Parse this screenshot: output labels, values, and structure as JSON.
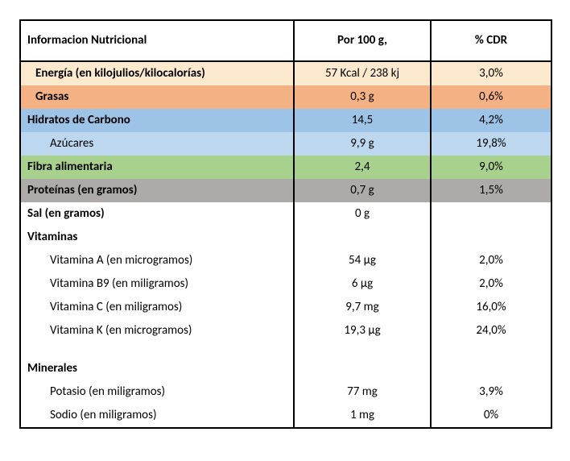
{
  "header": {
    "title": "Informacion Nutricional",
    "col2": "Por 100 g,",
    "col3": "%  CDR"
  },
  "rows": [
    {
      "label": "Energía (en kilojulios/kilocalorías)",
      "val": "57 Kcal / 238 kj",
      "cdr": "3,0%",
      "bg": "#fde9ce",
      "bold": true,
      "indent": 1
    },
    {
      "label": "Grasas",
      "val": "0,3 g",
      "cdr": "0,6%",
      "bg": "#f4b183",
      "bold": true,
      "indent": 1
    },
    {
      "label": "Hidratos de Carbono",
      "val": "14,5",
      "cdr": "4,2%",
      "bg": "#9dc3e6",
      "bold": true,
      "indent": 0
    },
    {
      "label": "Azúcares",
      "val": "9,9 g",
      "cdr": "19,8%",
      "bg": "#bdd7ee",
      "bold": false,
      "indent": 2
    },
    {
      "label": "Fibra alimentaria",
      "val": "2,4",
      "cdr": "9,0%",
      "bg": "#a9d18e",
      "bold": true,
      "indent": 0
    },
    {
      "label": "Proteínas (en gramos)",
      "val": "0,7 g",
      "cdr": "1,5%",
      "bg": "#aeaaaa",
      "bold": true,
      "indent": 0
    },
    {
      "label": "Sal (en gramos)",
      "val": "0 g",
      "cdr": "",
      "bg": "#ffffff",
      "bold": true,
      "indent": 0
    },
    {
      "label": "Vitaminas",
      "val": "",
      "cdr": "",
      "bg": "#ffffff",
      "bold": true,
      "indent": 0
    },
    {
      "label": "Vitamina A  (en microgramos)",
      "val": "54 µg",
      "cdr": "2,0%",
      "bg": "#ffffff",
      "bold": false,
      "indent": 2
    },
    {
      "label": "Vitamina B9 (en miligramos)",
      "val": "6 µg",
      "cdr": "2,0%",
      "bg": "#ffffff",
      "bold": false,
      "indent": 2
    },
    {
      "label": "Vitamina C  (en miligramos)",
      "val": "9,7 mg",
      "cdr": "16,0%",
      "bg": "#ffffff",
      "bold": false,
      "indent": 2
    },
    {
      "label": "Vitamina K  (en microgramos)",
      "val": "19,3 µg",
      "cdr": "24,0%",
      "bg": "#ffffff",
      "bold": false,
      "indent": 2
    },
    {
      "spacer": true
    },
    {
      "label": "Minerales",
      "val": "",
      "cdr": "",
      "bg": "#ffffff",
      "bold": true,
      "indent": 0
    },
    {
      "label": "Potasio (en miligramos)",
      "val": "77 mg",
      "cdr": "3,9%",
      "bg": "#ffffff",
      "bold": false,
      "indent": 2
    },
    {
      "label": "Sodio (en miligramos)",
      "val": "1 mg",
      "cdr": "0%",
      "bg": "#ffffff",
      "bold": false,
      "indent": 2
    }
  ],
  "style": {
    "border_color": "#000000",
    "font_family": "Calibri",
    "font_size_pt": 11,
    "header_text_color": "#000000",
    "body_text_color": "#000000"
  }
}
